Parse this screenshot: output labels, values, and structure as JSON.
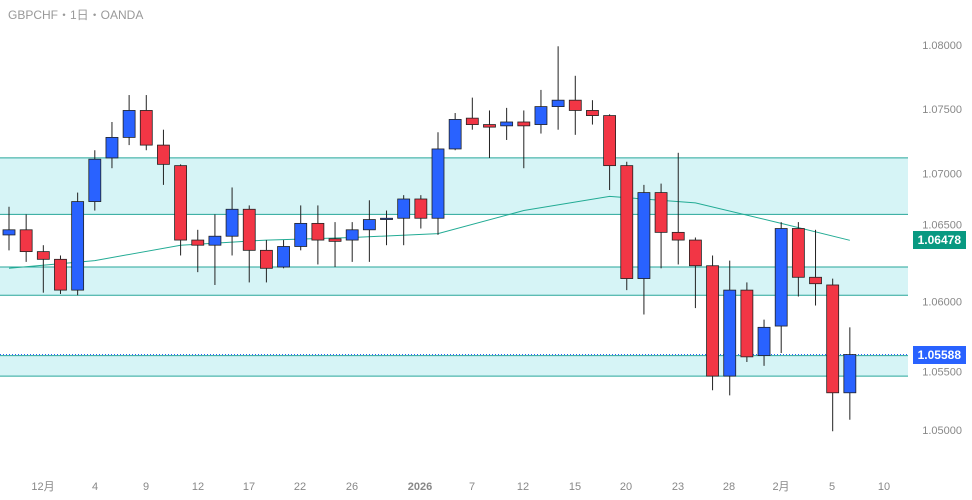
{
  "header": {
    "title": "GBPCHF・1日・OANDA"
  },
  "colors": {
    "up": "#2962ff",
    "down": "#f23645",
    "ma": "#22ab94",
    "band": "#d6f4f6",
    "band_line": "#26a69a"
  },
  "price_axis": {
    "ticks": [
      "1.08000",
      "1.07500",
      "1.07000",
      "1.06500",
      "1.06000",
      "1.05500",
      "1.05000"
    ],
    "ma_label": "1.06478",
    "last_label": "1.05588"
  },
  "time_axis": {
    "labels": [
      "12月",
      "4",
      "9",
      "12",
      "17",
      "22",
      "26",
      "2026",
      "7",
      "12",
      "15",
      "20",
      "23",
      "28",
      "2月",
      "5",
      "10"
    ]
  },
  "chart_data": {
    "type": "candlestick",
    "ylim": [
      1.0465,
      1.0835
    ],
    "ohlc": [
      [
        1.0652,
        1.0674,
        1.064,
        1.0656
      ],
      [
        1.0656,
        1.0668,
        1.0631,
        1.0639
      ],
      [
        1.0639,
        1.0644,
        1.0607,
        1.0633
      ],
      [
        1.0633,
        1.0636,
        1.0606,
        1.0609
      ],
      [
        1.0609,
        1.0685,
        1.0605,
        1.0678
      ],
      [
        1.0678,
        1.0718,
        1.0671,
        1.0711
      ],
      [
        1.0712,
        1.074,
        1.0704,
        1.0728
      ],
      [
        1.0728,
        1.0761,
        1.0722,
        1.0749
      ],
      [
        1.0749,
        1.0761,
        1.0718,
        1.0722
      ],
      [
        1.0722,
        1.0734,
        1.0691,
        1.0707
      ],
      [
        1.0706,
        1.0707,
        1.0636,
        1.0648
      ],
      [
        1.0648,
        1.0656,
        1.0623,
        1.0644
      ],
      [
        1.0644,
        1.0668,
        1.0613,
        1.0651
      ],
      [
        1.0651,
        1.0689,
        1.0636,
        1.0672
      ],
      [
        1.0672,
        1.0675,
        1.0615,
        1.064
      ],
      [
        1.064,
        1.0648,
        1.0615,
        1.0626
      ],
      [
        1.0627,
        1.0648,
        1.0626,
        1.0643
      ],
      [
        1.0643,
        1.0675,
        1.064,
        1.0661
      ],
      [
        1.0661,
        1.0675,
        1.0629,
        1.0648
      ],
      [
        1.0649,
        1.0662,
        1.0627,
        1.0647
      ],
      [
        1.0648,
        1.0662,
        1.0631,
        1.0656
      ],
      [
        1.0656,
        1.0679,
        1.0631,
        1.0664
      ],
      [
        1.0664,
        1.0671,
        1.0644,
        1.0665
      ],
      [
        1.0665,
        1.0683,
        1.0644,
        1.068
      ],
      [
        1.068,
        1.0683,
        1.0657,
        1.0665
      ],
      [
        1.0665,
        1.0732,
        1.0652,
        1.0719
      ],
      [
        1.0719,
        1.0747,
        1.0718,
        1.0742
      ],
      [
        1.0743,
        1.0759,
        1.0734,
        1.0738
      ],
      [
        1.0738,
        1.0749,
        1.0712,
        1.0736
      ],
      [
        1.0737,
        1.0751,
        1.0726,
        1.074
      ],
      [
        1.074,
        1.0749,
        1.0704,
        1.0737
      ],
      [
        1.0738,
        1.0765,
        1.0731,
        1.0752
      ],
      [
        1.0752,
        1.0799,
        1.0734,
        1.0757
      ],
      [
        1.0757,
        1.0776,
        1.073,
        1.0749
      ],
      [
        1.0749,
        1.0757,
        1.0738,
        1.0745
      ],
      [
        1.0745,
        1.0746,
        1.0687,
        1.0706
      ],
      [
        1.0706,
        1.0709,
        1.0609,
        1.0618
      ],
      [
        1.0618,
        1.0691,
        1.059,
        1.0685
      ],
      [
        1.0685,
        1.0692,
        1.0626,
        1.0654
      ],
      [
        1.0654,
        1.0716,
        1.0629,
        1.0648
      ],
      [
        1.0648,
        1.065,
        1.0595,
        1.0628
      ],
      [
        1.0628,
        1.0636,
        1.0531,
        1.0542
      ],
      [
        1.0542,
        1.0632,
        1.0527,
        1.0609
      ],
      [
        1.0609,
        1.0615,
        1.0553,
        1.0557
      ],
      [
        1.0558,
        1.0586,
        1.055,
        1.058
      ],
      [
        1.0581,
        1.0662,
        1.056,
        1.0657
      ],
      [
        1.0657,
        1.0662,
        1.0604,
        1.0619
      ],
      [
        1.0619,
        1.0656,
        1.0597,
        1.0614
      ],
      [
        1.0613,
        1.0618,
        1.0499,
        1.0529
      ],
      [
        1.0529,
        1.058,
        1.0508,
        1.05588
      ]
    ],
    "ma": {
      "index": [
        0,
        5,
        10,
        15,
        20,
        25,
        30,
        35,
        40,
        45,
        49
      ],
      "values": [
        1.0626,
        1.0632,
        1.0644,
        1.0648,
        1.065,
        1.0653,
        1.0671,
        1.0682,
        1.0677,
        1.0661,
        1.06478
      ]
    },
    "zones": [
      [
        1.0668,
        1.0712
      ],
      [
        1.0605,
        1.0627
      ],
      [
        1.0542,
        1.0558
      ]
    ],
    "last_price": 1.05588
  }
}
